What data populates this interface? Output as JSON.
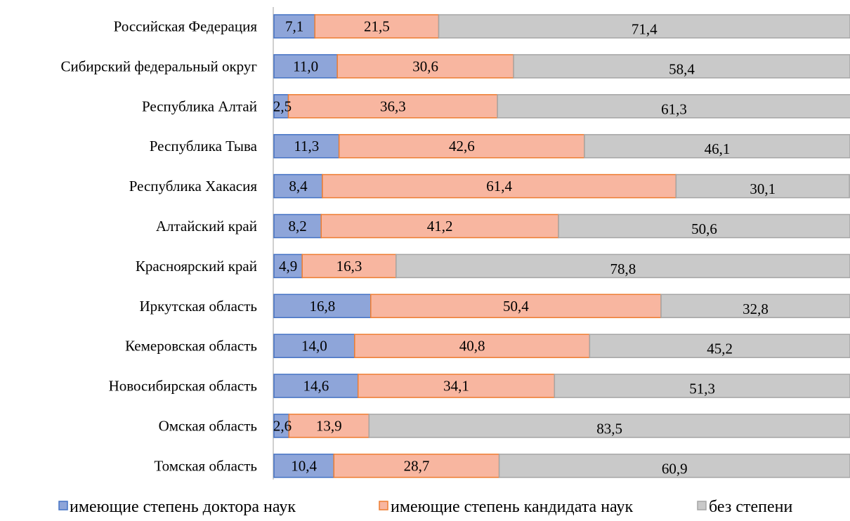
{
  "chart_data": {
    "type": "bar",
    "orientation": "horizontal",
    "stacked": "percent",
    "title": "",
    "xlabel": "",
    "ylabel": "",
    "xlim": [
      0,
      100
    ],
    "grid": false,
    "legend_position": "bottom",
    "categories": [
      "Российская Федерация",
      "Сибирский федеральный округ",
      "Республика Алтай",
      "Республика Тыва",
      "Республика Хакасия",
      "Алтайский край",
      "Красноярский край",
      "Иркутская область",
      "Кемеровская область",
      "Новосибирская область",
      "Омская область",
      "Томская область"
    ],
    "series": [
      {
        "name": "имеющие степень доктора наук",
        "values": [
          7.1,
          11.0,
          2.5,
          11.3,
          8.4,
          8.2,
          4.9,
          16.8,
          14.0,
          14.6,
          2.6,
          10.4
        ],
        "labels": [
          "7,1",
          "11,0",
          "2,5",
          "11,3",
          "8,4",
          "8,2",
          "4,9",
          "16,8",
          "14,0",
          "14,6",
          "2,6",
          "10,4"
        ],
        "color": "#8EA5D9",
        "stroke": "#4472C4"
      },
      {
        "name": "имеющие степень кандидата наук",
        "values": [
          21.5,
          30.6,
          36.3,
          42.6,
          61.4,
          41.2,
          16.3,
          50.4,
          40.8,
          34.1,
          13.9,
          28.7
        ],
        "labels": [
          "21,5",
          "30,6",
          "36,3",
          "42,6",
          "61,4",
          "41,2",
          "16,3",
          "50,4",
          "40,8",
          "34,1",
          "13,9",
          "28,7"
        ],
        "color": "#F8B6A0",
        "stroke": "#ED7D31"
      },
      {
        "name": "без степени",
        "values": [
          71.4,
          58.4,
          61.3,
          46.1,
          30.1,
          50.6,
          78.8,
          32.8,
          45.2,
          51.3,
          83.5,
          60.9
        ],
        "labels": [
          "71,4",
          "58,4",
          "61,3",
          "46,1",
          "30,1",
          "50,6",
          "78,8",
          "32,8",
          "45,2",
          "51,3",
          "83,5",
          "60,9"
        ],
        "color": "#C9C9C9",
        "stroke": "#A5A5A5"
      }
    ]
  }
}
